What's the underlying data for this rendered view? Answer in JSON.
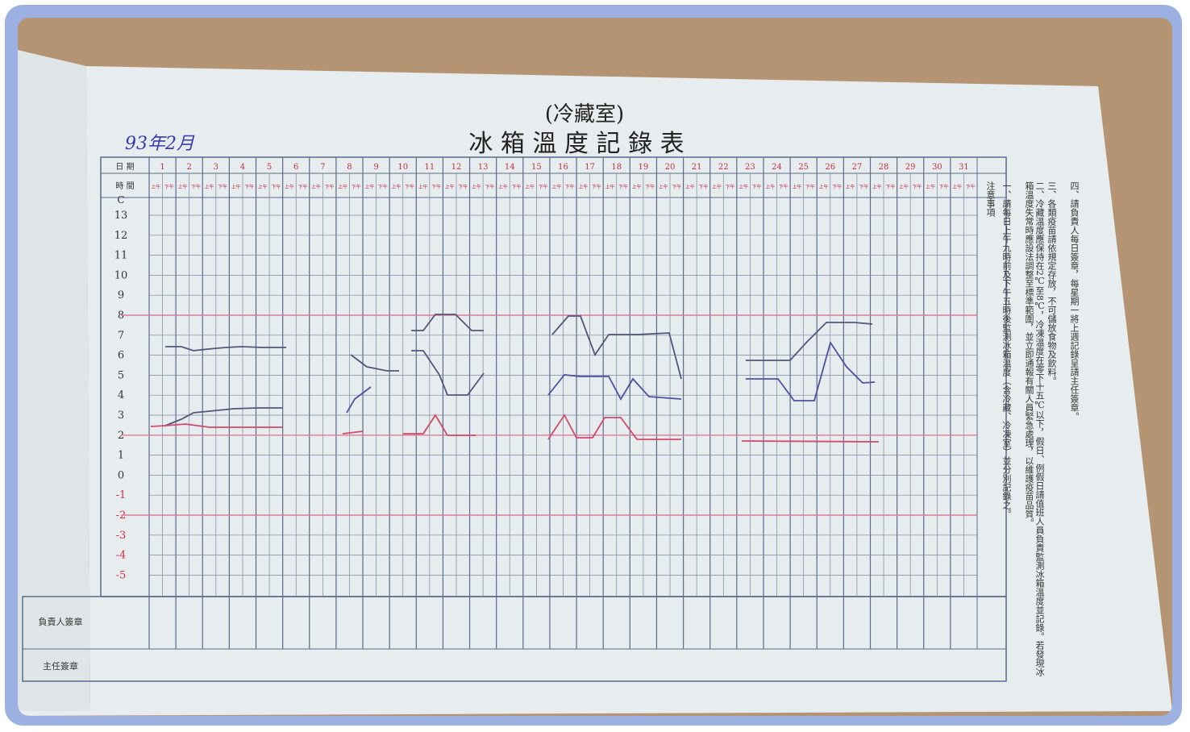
{
  "header": {
    "subtitle": "(冷藏室)",
    "title": "冰 箱 溫 度 記 錄 表",
    "date": "93年2月"
  },
  "table": {
    "date_label": "日 期",
    "time_label": "時 間",
    "days": [
      "1",
      "2",
      "3",
      "4",
      "5",
      "6",
      "7",
      "8",
      "9",
      "10",
      "11",
      "12",
      "13",
      "14",
      "15",
      "16",
      "17",
      "18",
      "19",
      "20",
      "21",
      "22",
      "23",
      "24",
      "25",
      "26",
      "27",
      "28",
      "29",
      "30",
      "31"
    ],
    "slots": [
      "上午",
      "下午"
    ],
    "unit": "C",
    "temps": [
      "13",
      "12",
      "11",
      "10",
      "9",
      "8",
      "7",
      "6",
      "5",
      "4",
      "3",
      "2",
      "1",
      "0",
      "-1",
      "-2",
      "-3",
      "-4",
      "-5"
    ],
    "signature_label": "負責人簽章",
    "supervisor_label": "主任簽章"
  },
  "notes": {
    "heading": "注意事項",
    "items": [
      "一、請每日上午九時前及下午五時後監測冰箱溫度（含冷藏、冷凍室）並分別記錄之。",
      "二、冷藏溫度應保持在2℃至8℃，冷凍溫度在零下十五℃以下，假日、例假日請值班人員負責監測冰箱溫度並記錄。若發現冰箱溫度失常時應設法調整至標準範圍，並立即通報有關人員緊急處理，以維護疫苗品質。",
      "三、各類疫苗請依規定存放，不可儲放食物及飲料。",
      "四、請負責人每日簽章，每星期一將上週記錄呈請主任簽章。"
    ]
  }
}
